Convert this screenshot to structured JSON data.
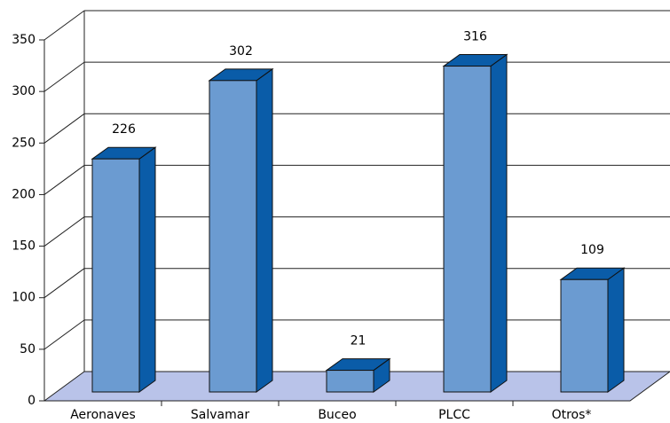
{
  "chart_data": {
    "type": "bar3d",
    "categories": [
      "Aeronaves",
      "Salvamar",
      "Buceo",
      "PLCC",
      "Otros*"
    ],
    "values": [
      226,
      302,
      21,
      316,
      109
    ],
    "color": "#6b9bd1",
    "ylim": [
      0,
      350
    ],
    "yticks": [
      0,
      50,
      100,
      150,
      200,
      250,
      300,
      350
    ],
    "grid": true
  }
}
